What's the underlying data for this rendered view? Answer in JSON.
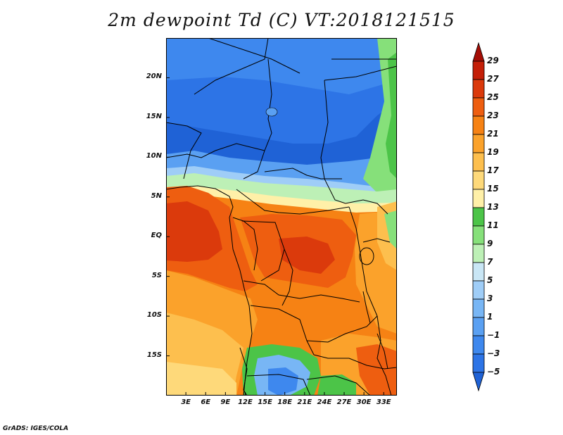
{
  "title": "2m dewpoint Td (C) VT:2018121515",
  "footer": "GrADS: IGES/COLA",
  "map": {
    "lat_range": [
      -20,
      25
    ],
    "lon_range": [
      0,
      35
    ],
    "lat_labels": [
      {
        "lat": 20,
        "label": "20N"
      },
      {
        "lat": 15,
        "label": "15N"
      },
      {
        "lat": 10,
        "label": "10N"
      },
      {
        "lat": 5,
        "label": "5N"
      },
      {
        "lat": 0,
        "label": "EQ"
      },
      {
        "lat": -5,
        "label": "5S"
      },
      {
        "lat": -10,
        "label": "10S"
      },
      {
        "lat": -15,
        "label": "15S"
      }
    ],
    "lon_labels": [
      {
        "lon": 3,
        "label": "3E"
      },
      {
        "lon": 6,
        "label": "6E"
      },
      {
        "lon": 9,
        "label": "9E"
      },
      {
        "lon": 12,
        "label": "12E"
      },
      {
        "lon": 15,
        "label": "15E"
      },
      {
        "lon": 18,
        "label": "18E"
      },
      {
        "lon": 21,
        "label": "21E"
      },
      {
        "lon": 24,
        "label": "24E"
      },
      {
        "lon": 27,
        "label": "27E"
      },
      {
        "lon": 30,
        "label": "30E"
      },
      {
        "lon": 33,
        "label": "33E"
      }
    ]
  },
  "colorbar": {
    "levels": [
      "-5",
      "-3",
      "-1",
      "1",
      "3",
      "5",
      "7",
      "9",
      "11",
      "13",
      "15",
      "17",
      "19",
      "21",
      "23",
      "25",
      "27",
      "29"
    ],
    "colors": [
      "#1f62d6",
      "#2d74e6",
      "#3e88ee",
      "#5aa0f2",
      "#78b6f5",
      "#9fcdf7",
      "#c9e6f5",
      "#bdf0b6",
      "#86e07a",
      "#4cc448",
      "#fff0a8",
      "#fed97a",
      "#fdbf4e",
      "#fba22b",
      "#f68214",
      "#ee5e10",
      "#db3a0c",
      "#c41f08",
      "#a50d05"
    ]
  }
}
